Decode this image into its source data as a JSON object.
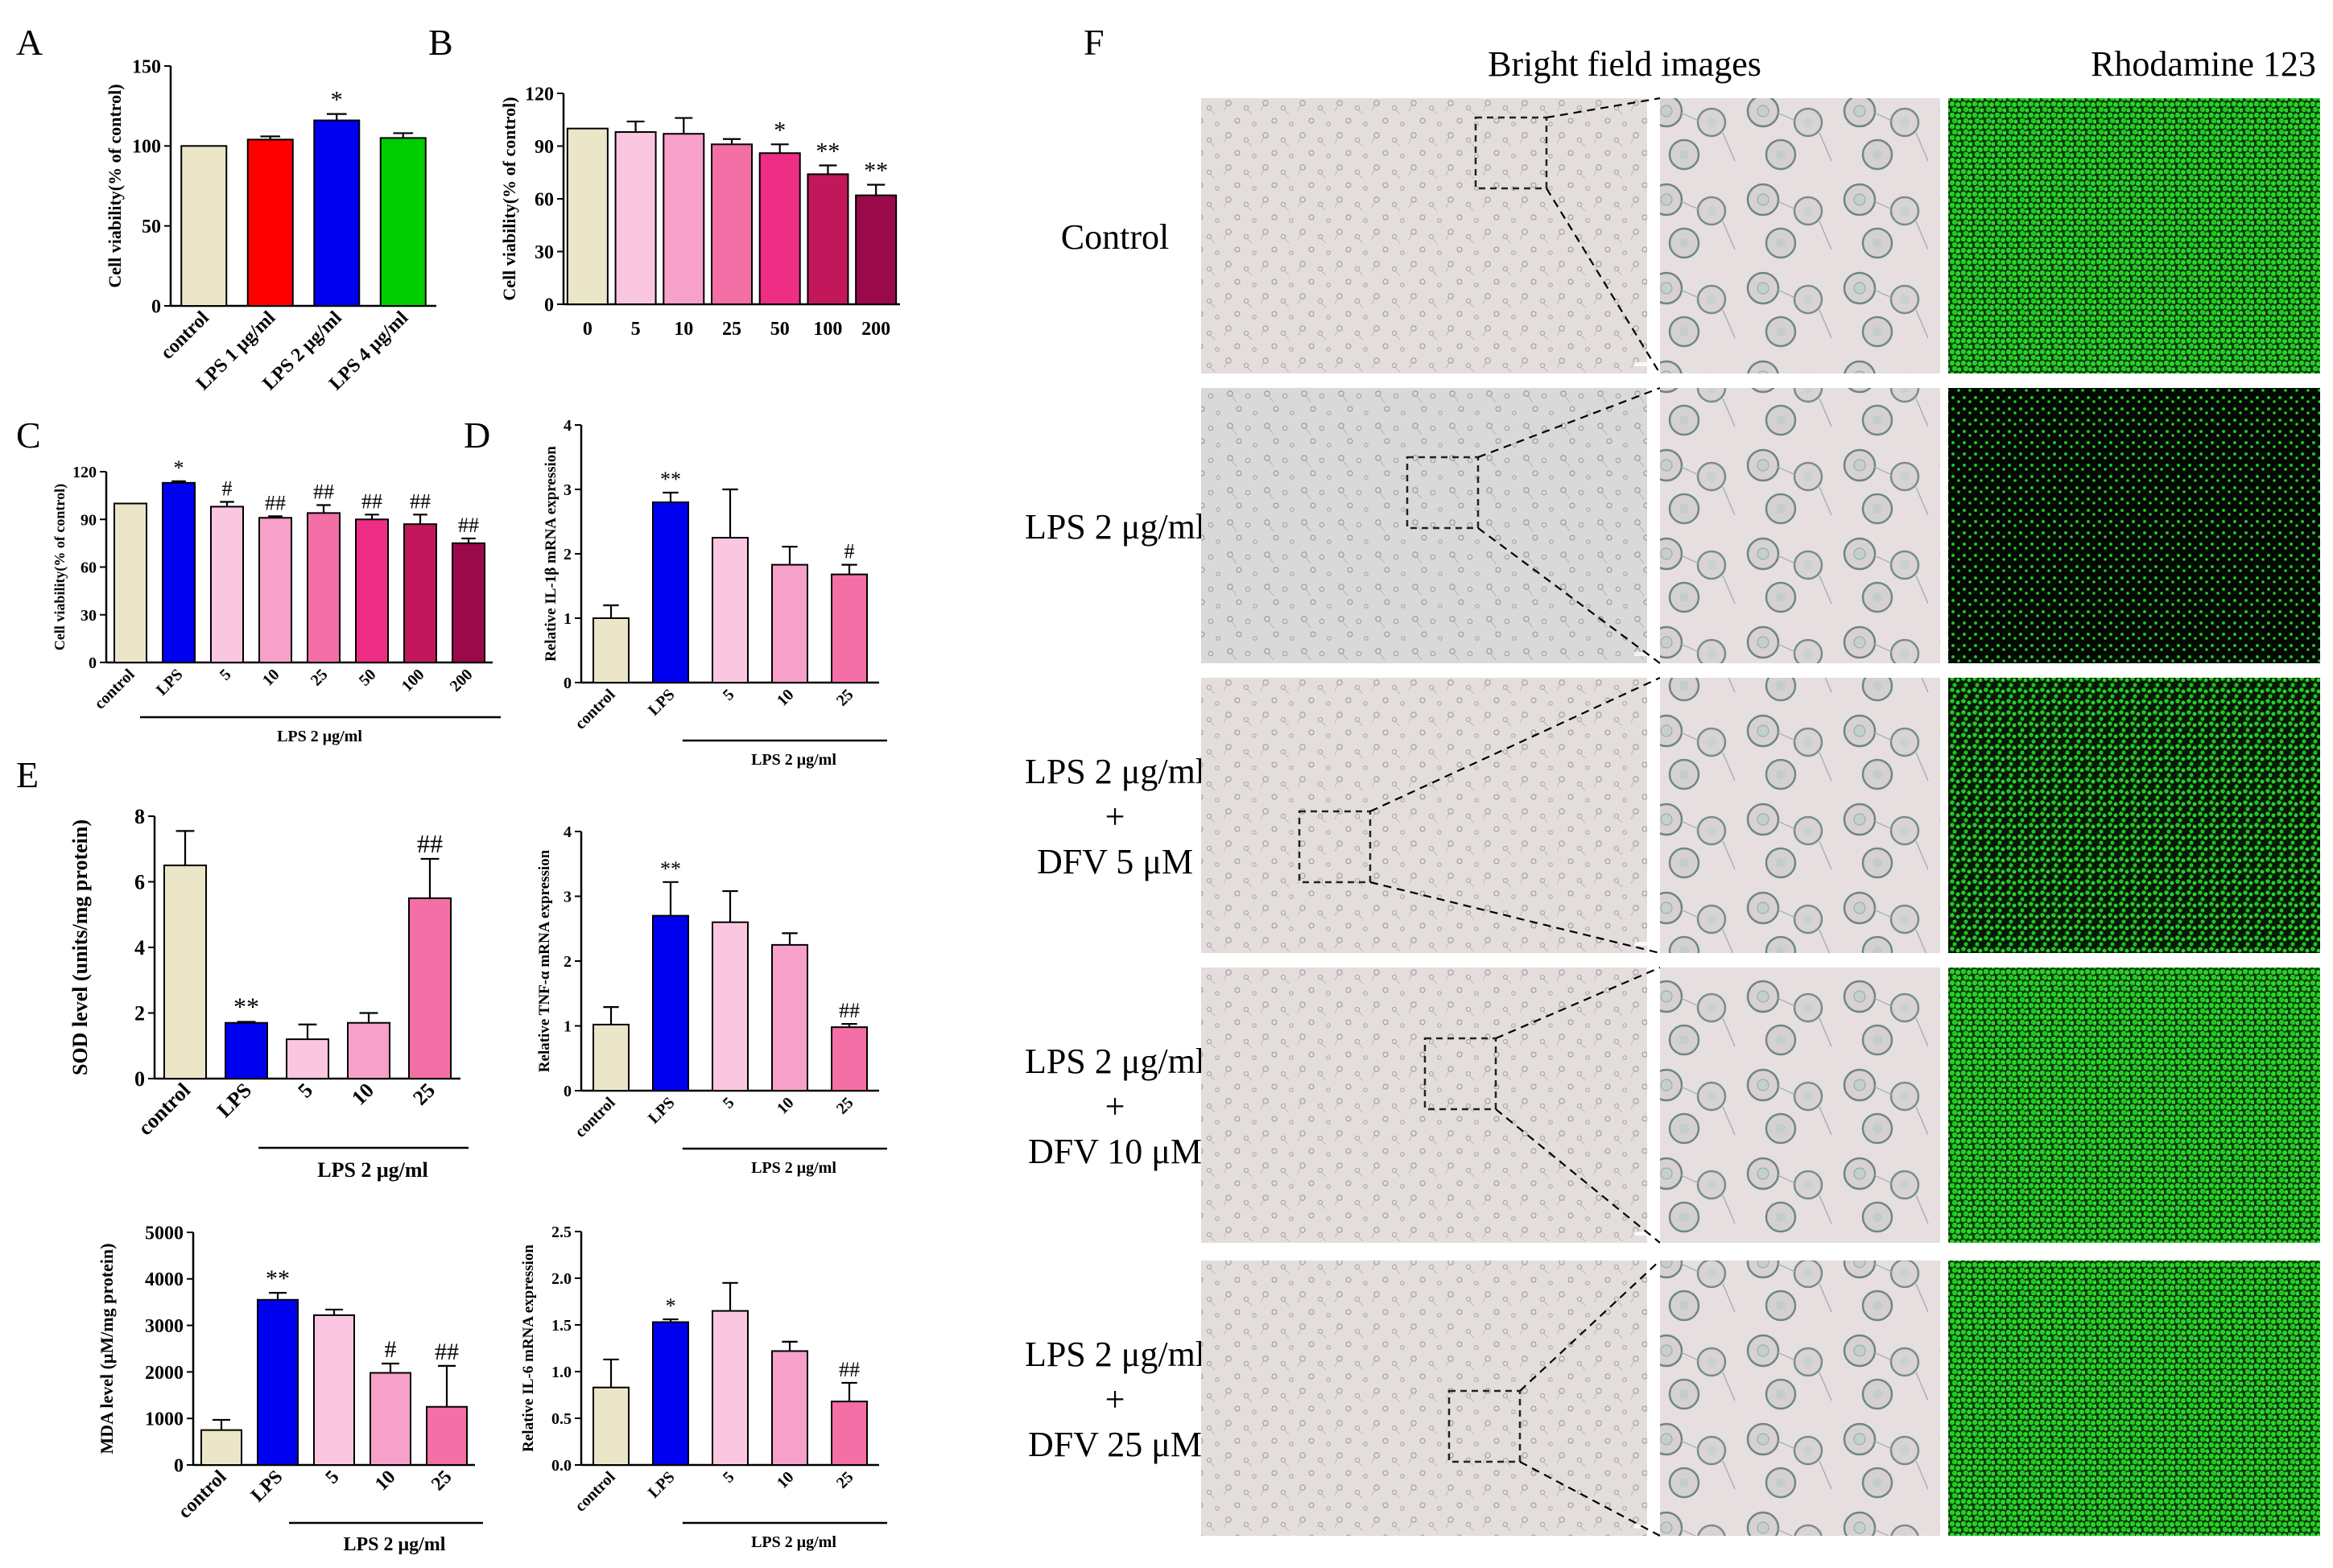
{
  "panel_letters": {
    "A": "A",
    "B": "B",
    "C": "C",
    "D": "D",
    "E": "E",
    "F": "F"
  },
  "colors": {
    "beige": "#ECE6C8",
    "red": "#FF0000",
    "blue": "#0000F0",
    "green": "#00CC00",
    "p1": "#FBC6E0",
    "p2": "#F7A0C9",
    "p3": "#F36FA6",
    "p4": "#EE2E84",
    "p5": "#C2185B",
    "p6": "#9A0A4A",
    "cell_bg": "#E4DEDD",
    "cell_bg2": "#DFDADB",
    "fluor": "#22CC22",
    "fluor_dark": "#0B2A0B"
  },
  "chart_data": [
    {
      "id": "A",
      "type": "bar",
      "title": "",
      "ylabel": "Cell viability(% of control)",
      "ylim": [
        0,
        150
      ],
      "yticks": [
        0,
        50,
        100,
        150
      ],
      "categories": [
        "control",
        "LPS 1 μg/ml",
        "LPS 2 μg/ml",
        "LPS 4 μg/ml"
      ],
      "values": [
        100,
        104,
        116,
        105
      ],
      "errors": [
        0,
        2,
        4,
        3
      ],
      "annotations": [
        "",
        "",
        "*",
        ""
      ],
      "bar_colors": [
        "beige",
        "red",
        "blue",
        "green"
      ],
      "group_label": ""
    },
    {
      "id": "B",
      "type": "bar",
      "title": "",
      "ylabel": "Cell viability(% of control)",
      "ylim": [
        0,
        120
      ],
      "yticks": [
        0,
        30,
        60,
        90,
        120
      ],
      "categories": [
        "0",
        "5",
        "10",
        "25",
        "50",
        "100",
        "200"
      ],
      "values": [
        100,
        98,
        97,
        91,
        86,
        74,
        62
      ],
      "errors": [
        0,
        6,
        9,
        3,
        5,
        5,
        6
      ],
      "annotations": [
        "",
        "",
        "",
        "",
        "*",
        "**",
        "**"
      ],
      "bar_colors": [
        "beige",
        "p1",
        "p2",
        "p3",
        "p4",
        "p5",
        "p6"
      ],
      "group_label": ""
    },
    {
      "id": "C",
      "type": "bar",
      "title": "",
      "ylabel": "Cell viability(% of control)",
      "ylim": [
        0,
        120
      ],
      "yticks": [
        0,
        30,
        60,
        90,
        120
      ],
      "categories": [
        "control",
        "LPS",
        "5",
        "10",
        "25",
        "50",
        "100",
        "200"
      ],
      "values": [
        100,
        113,
        98,
        91,
        94,
        90,
        87,
        75
      ],
      "errors": [
        0,
        1,
        3,
        1,
        5,
        3,
        6,
        3
      ],
      "annotations": [
        "",
        "*",
        "#",
        "##",
        "##",
        "##",
        "##",
        "##"
      ],
      "bar_colors": [
        "beige",
        "blue",
        "p1",
        "p2",
        "p3",
        "p4",
        "p5",
        "p6"
      ],
      "group_label": "LPS 2 μg/ml"
    },
    {
      "id": "D",
      "type": "bar",
      "title": "",
      "ylabel": "Relative IL-1β mRNA expression",
      "ylim": [
        0,
        4
      ],
      "yticks": [
        0,
        1,
        2,
        3,
        4
      ],
      "categories": [
        "control",
        "LPS",
        "5",
        "10",
        "25"
      ],
      "values": [
        1.0,
        2.8,
        2.25,
        1.83,
        1.68
      ],
      "errors": [
        0.2,
        0.15,
        0.75,
        0.28,
        0.15
      ],
      "annotations": [
        "",
        "**",
        "",
        "",
        "#"
      ],
      "bar_colors": [
        "beige",
        "blue",
        "p1",
        "p2",
        "p3"
      ],
      "group_label": "LPS 2 μg/ml"
    },
    {
      "id": "E1",
      "type": "bar",
      "title": "",
      "ylabel": "SOD level (units/mg protein)",
      "ylim": [
        0,
        8
      ],
      "yticks": [
        0,
        2,
        4,
        6,
        8
      ],
      "categories": [
        "control",
        "LPS",
        "5",
        "10",
        "25"
      ],
      "values": [
        6.5,
        1.7,
        1.2,
        1.7,
        5.5
      ],
      "errors": [
        1.05,
        0.03,
        0.45,
        0.3,
        1.2
      ],
      "annotations": [
        "",
        "**",
        "",
        "",
        "##"
      ],
      "bar_colors": [
        "beige",
        "blue",
        "p1",
        "p2",
        "p3"
      ],
      "group_label": "LPS 2 μg/ml"
    },
    {
      "id": "E2",
      "type": "bar",
      "title": "",
      "ylabel": "Relative TNF-α mRNA expression",
      "ylim": [
        0,
        4
      ],
      "yticks": [
        0,
        1,
        2,
        3,
        4
      ],
      "categories": [
        "control",
        "LPS",
        "5",
        "10",
        "25"
      ],
      "values": [
        1.02,
        2.7,
        2.6,
        2.25,
        0.98
      ],
      "errors": [
        0.27,
        0.52,
        0.48,
        0.18,
        0.05
      ],
      "annotations": [
        "",
        "**",
        "",
        "",
        "##"
      ],
      "bar_colors": [
        "beige",
        "blue",
        "p1",
        "p2",
        "p3"
      ],
      "group_label": "LPS 2 μg/ml"
    },
    {
      "id": "E3",
      "type": "bar",
      "title": "",
      "ylabel": "MDA level (μM/mg protein)",
      "ylim": [
        0,
        5000
      ],
      "yticks": [
        0,
        1000,
        2000,
        3000,
        4000,
        5000
      ],
      "categories": [
        "control",
        "LPS",
        "5",
        "10",
        "25"
      ],
      "values": [
        750,
        3550,
        3220,
        1980,
        1250
      ],
      "errors": [
        220,
        150,
        120,
        200,
        880
      ],
      "annotations": [
        "",
        "**",
        "",
        "#",
        "##"
      ],
      "bar_colors": [
        "beige",
        "blue",
        "p1",
        "p2",
        "p3"
      ],
      "group_label": "LPS 2 μg/ml"
    },
    {
      "id": "E4",
      "type": "bar",
      "title": "",
      "ylabel": "Relative IL-6 mRNA expression",
      "ylim": [
        0,
        2.5
      ],
      "yticks": [
        "0.0",
        "0.5",
        "1.0",
        "1.5",
        "2.0",
        "2.5"
      ],
      "categories": [
        "control",
        "LPS",
        "5",
        "10",
        "25"
      ],
      "values": [
        0.83,
        1.53,
        1.65,
        1.22,
        0.68
      ],
      "errors": [
        0.3,
        0.03,
        0.3,
        0.1,
        0.2
      ],
      "annotations": [
        "",
        "*",
        "",
        "",
        "##"
      ],
      "bar_colors": [
        "beige",
        "blue",
        "p1",
        "p2",
        "p3"
      ],
      "group_label": "LPS 2 μg/ml"
    }
  ],
  "panel_f": {
    "col_headers": [
      "Bright field images",
      "Rhodamine 123"
    ],
    "rows": [
      {
        "label": [
          "Control"
        ],
        "fluor_density": "high"
      },
      {
        "label": [
          "LPS 2 μg/ml"
        ],
        "fluor_density": "low"
      },
      {
        "label": [
          "LPS 2 μg/ml",
          "+",
          "DFV 5 μM"
        ],
        "fluor_density": "medium"
      },
      {
        "label": [
          "LPS 2 μg/ml",
          "+",
          "DFV 10 μM"
        ],
        "fluor_density": "high"
      },
      {
        "label": [
          "LPS 2 μg/ml",
          "+",
          "DFV 25 μM"
        ],
        "fluor_density": "high"
      }
    ]
  }
}
